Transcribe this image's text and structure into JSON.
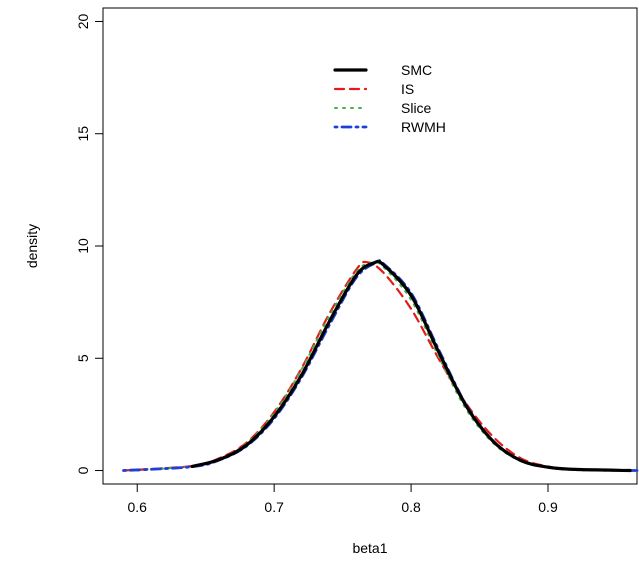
{
  "chart_data": {
    "type": "line",
    "xlabel": "beta1",
    "ylabel": "density",
    "xlim": [
      0.575,
      0.965
    ],
    "ylim": [
      -0.6,
      20.6
    ],
    "x_ticks": [
      0.6,
      0.7,
      0.8,
      0.9
    ],
    "x_tick_labels": [
      "0.6",
      "0.7",
      "0.8",
      "0.9"
    ],
    "y_ticks": [
      0,
      5,
      10,
      15,
      20
    ],
    "y_tick_labels": [
      "0",
      "5",
      "10",
      "15",
      "20"
    ],
    "grid": false,
    "legend_position": "top-center",
    "series": [
      {
        "name": "SMC",
        "color": "#000000",
        "style": "solid",
        "x": [
          0.64,
          0.66,
          0.68,
          0.7,
          0.72,
          0.74,
          0.76,
          0.773,
          0.78,
          0.8,
          0.82,
          0.84,
          0.86,
          0.88,
          0.9,
          0.92,
          0.96
        ],
        "y": [
          0.18,
          0.49,
          1.14,
          2.4,
          4.25,
          6.6,
          8.7,
          9.25,
          9.15,
          7.8,
          5.3,
          2.9,
          1.3,
          0.45,
          0.15,
          0.05,
          0.0
        ]
      },
      {
        "name": "IS",
        "color": "#e41a1c",
        "style": "dashed",
        "x": [
          0.59,
          0.64,
          0.66,
          0.68,
          0.7,
          0.72,
          0.74,
          0.76,
          0.768,
          0.78,
          0.8,
          0.82,
          0.84,
          0.86,
          0.88,
          0.9,
          0.92,
          0.96
        ],
        "y": [
          0.0,
          0.2,
          0.55,
          1.25,
          2.6,
          4.55,
          6.95,
          8.95,
          9.28,
          8.8,
          7.2,
          5.0,
          3.0,
          1.5,
          0.55,
          0.18,
          0.06,
          0.0
        ]
      },
      {
        "name": "Slice",
        "color": "#4daf4a",
        "style": "dotted",
        "x": [
          0.6,
          0.64,
          0.66,
          0.68,
          0.7,
          0.72,
          0.74,
          0.76,
          0.772,
          0.78,
          0.8,
          0.82,
          0.84,
          0.86,
          0.88,
          0.9,
          0.92,
          0.96
        ],
        "y": [
          0.0,
          0.2,
          0.52,
          1.22,
          2.55,
          4.5,
          6.85,
          8.85,
          9.26,
          9.05,
          7.6,
          5.1,
          2.75,
          1.22,
          0.42,
          0.14,
          0.04,
          0.0
        ]
      },
      {
        "name": "RWMH",
        "color": "#1f3fd8",
        "style": "dotdash",
        "x": [
          0.59,
          0.64,
          0.66,
          0.68,
          0.7,
          0.72,
          0.74,
          0.76,
          0.775,
          0.78,
          0.8,
          0.82,
          0.84,
          0.86,
          0.88,
          0.9,
          0.92,
          0.965
        ],
        "y": [
          0.0,
          0.17,
          0.47,
          1.1,
          2.32,
          4.15,
          6.45,
          8.6,
          9.27,
          9.2,
          7.9,
          5.4,
          2.95,
          1.3,
          0.45,
          0.15,
          0.04,
          0.0
        ]
      }
    ]
  }
}
